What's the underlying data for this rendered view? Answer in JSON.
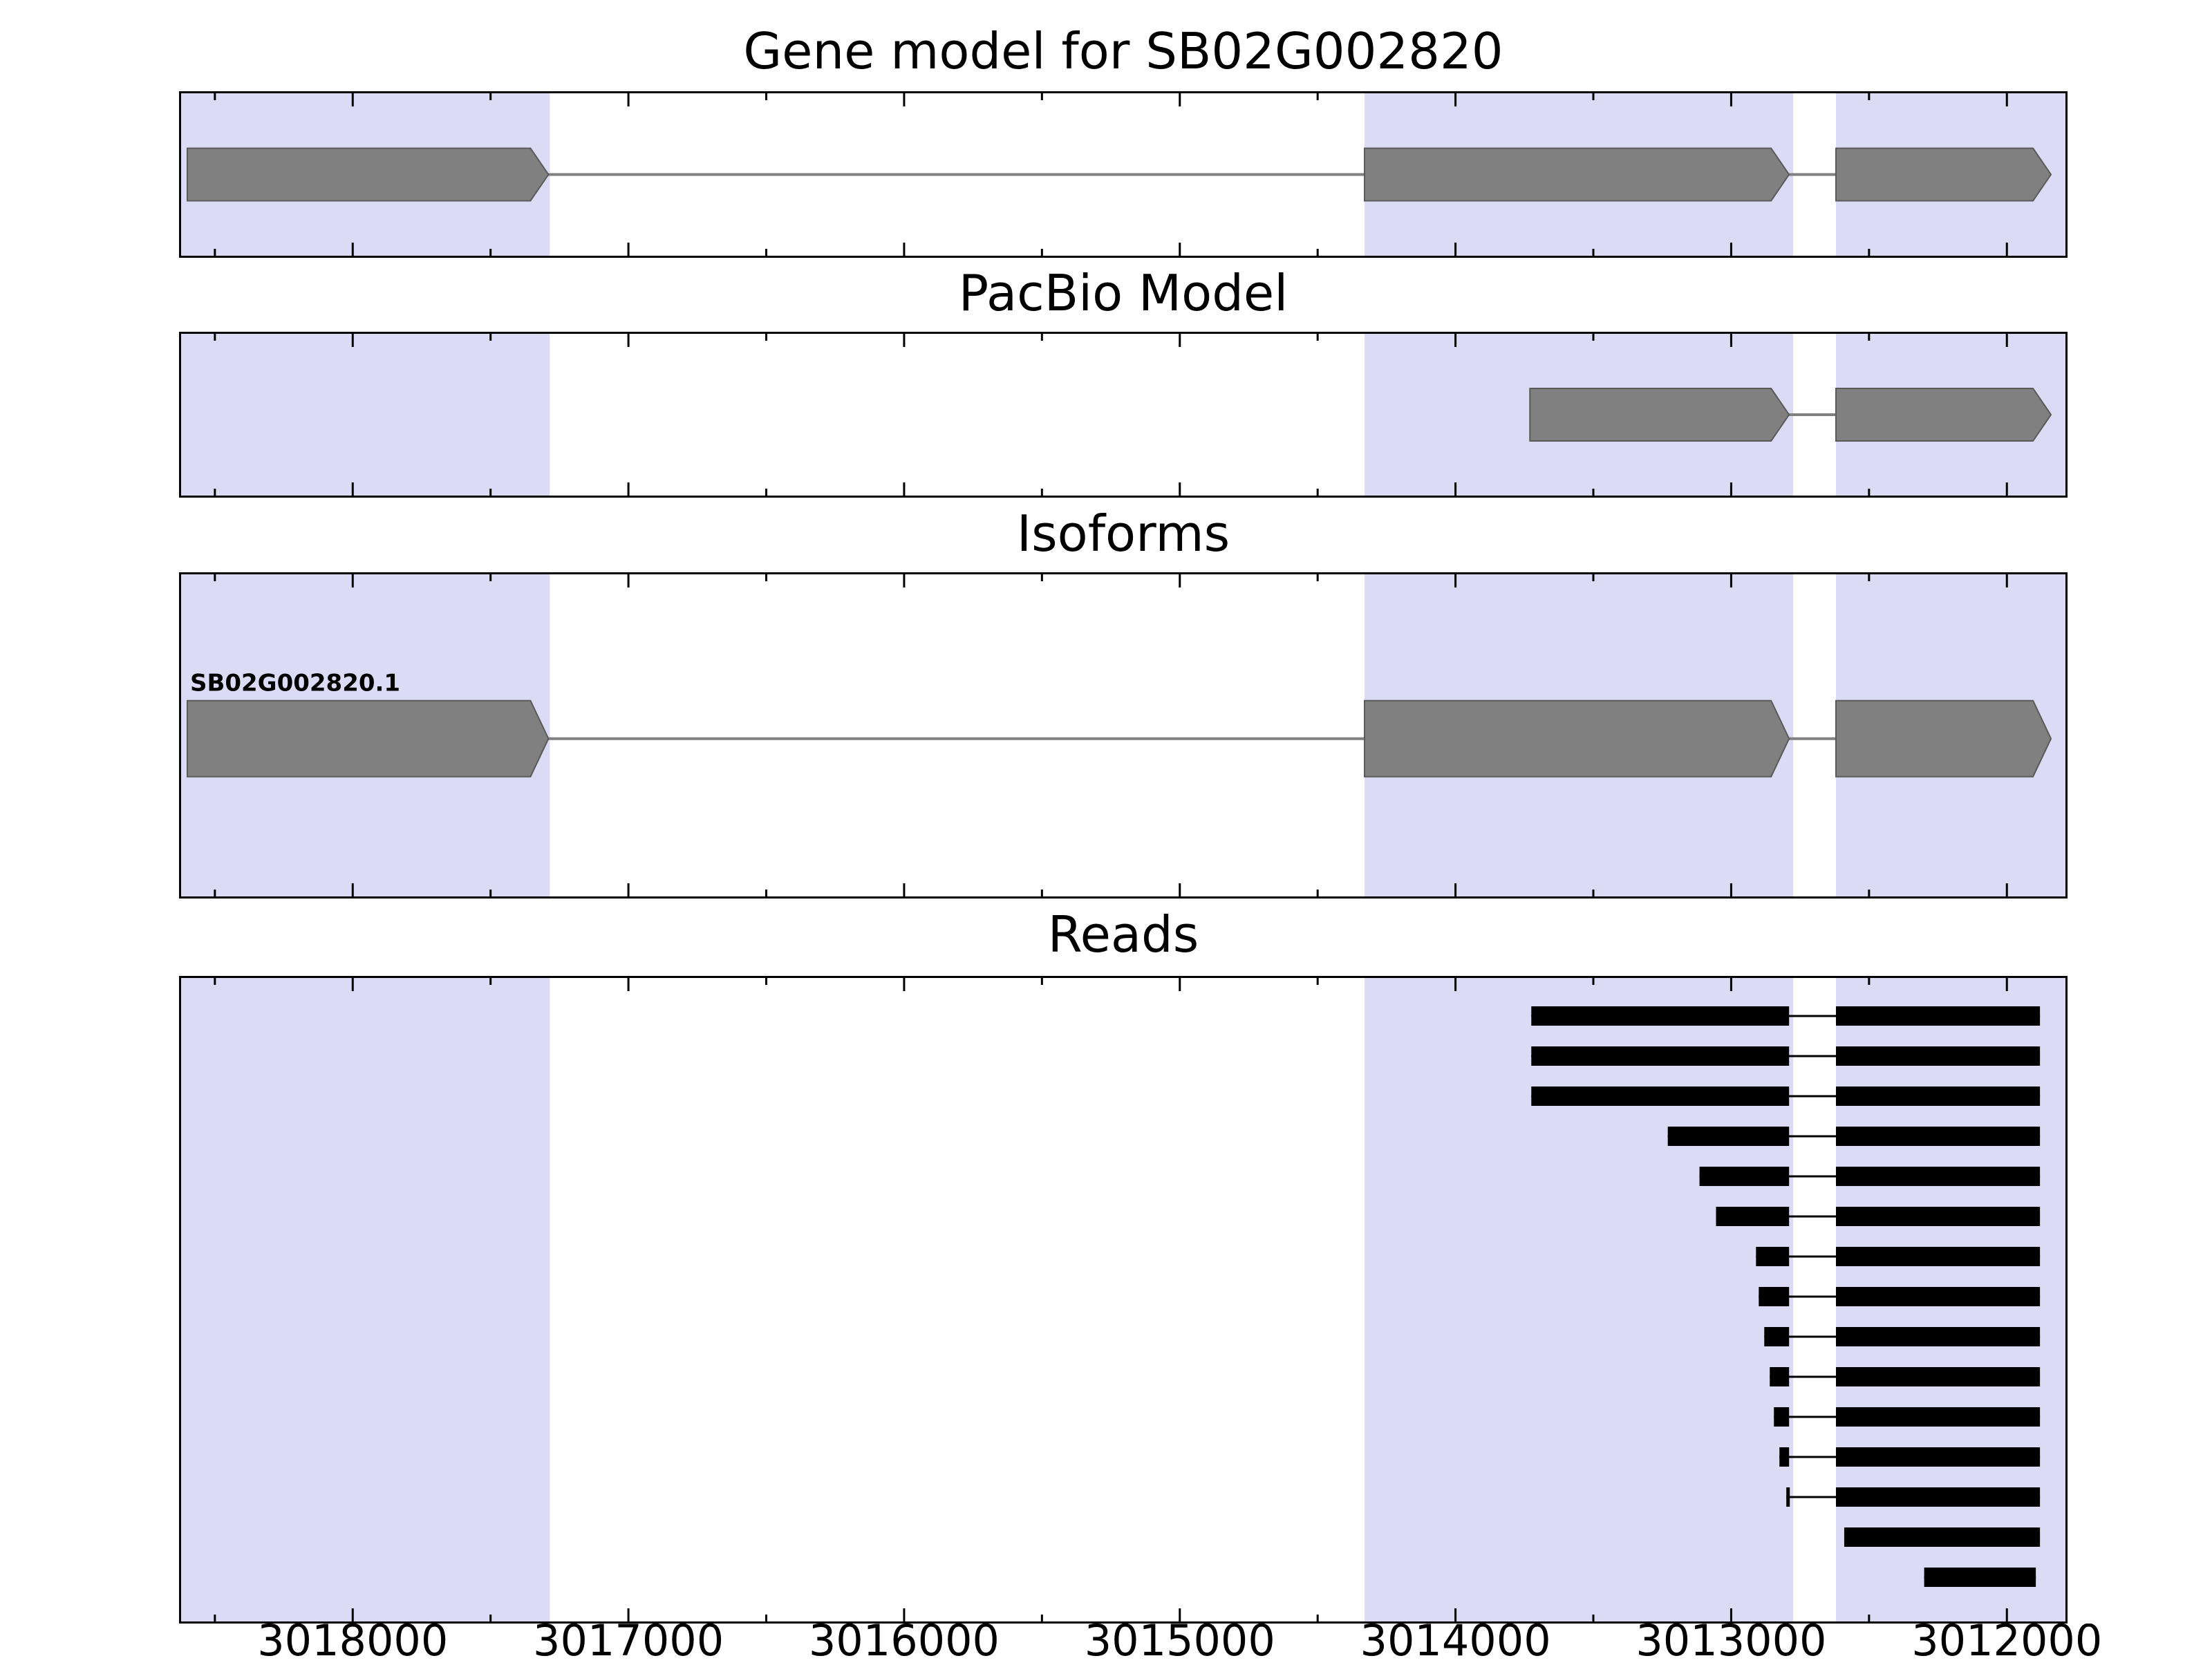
{
  "chart_data": {
    "type": "gene-model-tracks",
    "x_axis": {
      "domain": [
        3018630,
        3011780
      ],
      "inverted": true,
      "major_ticks": [
        3018000,
        3017000,
        3016000,
        3015000,
        3014000,
        3013000,
        3012000
      ],
      "tick_labels": [
        "3018000",
        "3017000",
        "3016000",
        "3015000",
        "3014000",
        "3013000",
        "3012000"
      ],
      "minor_tick_step": 500
    },
    "highlight_regions": [
      [
        3018630,
        3017285
      ],
      [
        3014330,
        3012775
      ],
      [
        3012620,
        3011780
      ]
    ],
    "panels": [
      {
        "id": "gene_model",
        "title": "Gene model for SB02G002820",
        "features": [
          {
            "type": "transcript",
            "label": "",
            "exons": [
              [
                3018600,
                3017290
              ],
              [
                3014330,
                3012790
              ],
              [
                3012620,
                3011840
              ]
            ]
          }
        ]
      },
      {
        "id": "pacbio",
        "title": "PacBio Model",
        "features": [
          {
            "type": "transcript",
            "label": "",
            "exons": [
              [
                3013730,
                3012790
              ],
              [
                3012620,
                3011840
              ]
            ]
          }
        ]
      },
      {
        "id": "isoforms",
        "title": "Isoforms",
        "features": [
          {
            "type": "transcript",
            "label": "SB02G002820.1",
            "exons": [
              [
                3018600,
                3017290
              ],
              [
                3014330,
                3012790
              ],
              [
                3012620,
                3011840
              ]
            ]
          }
        ]
      },
      {
        "id": "reads",
        "title": "Reads",
        "reads": [
          [
            [
              3013725,
              3012790
            ],
            [
              3012620,
              3011880
            ]
          ],
          [
            [
              3013725,
              3012790
            ],
            [
              3012620,
              3011880
            ]
          ],
          [
            [
              3013725,
              3012790
            ],
            [
              3012620,
              3011880
            ]
          ],
          [
            [
              3013230,
              3012790
            ],
            [
              3012620,
              3011880
            ]
          ],
          [
            [
              3013115,
              3012790
            ],
            [
              3012620,
              3011880
            ]
          ],
          [
            [
              3013055,
              3012790
            ],
            [
              3012620,
              3011880
            ]
          ],
          [
            [
              3012910,
              3012790
            ],
            [
              3012620,
              3011880
            ]
          ],
          [
            [
              3012900,
              3012790
            ],
            [
              3012620,
              3011880
            ]
          ],
          [
            [
              3012880,
              3012790
            ],
            [
              3012620,
              3011880
            ]
          ],
          [
            [
              3012860,
              3012790
            ],
            [
              3012620,
              3011880
            ]
          ],
          [
            [
              3012845,
              3012790
            ],
            [
              3012620,
              3011880
            ]
          ],
          [
            [
              3012825,
              3012790
            ],
            [
              3012620,
              3011880
            ]
          ],
          [
            [
              3012800,
              3012790
            ],
            [
              3012620,
              3011880
            ]
          ],
          [
            [
              3012590,
              3011880
            ]
          ],
          [
            [
              3012300,
              3011895
            ]
          ]
        ]
      }
    ],
    "colors": {
      "highlight": "#dbdbf6",
      "exon_fill": "#808080",
      "exon_edge": "#5a5a5a",
      "connector": "#808080",
      "read": "#000000",
      "axis": "#000000",
      "text": "#000000"
    }
  }
}
